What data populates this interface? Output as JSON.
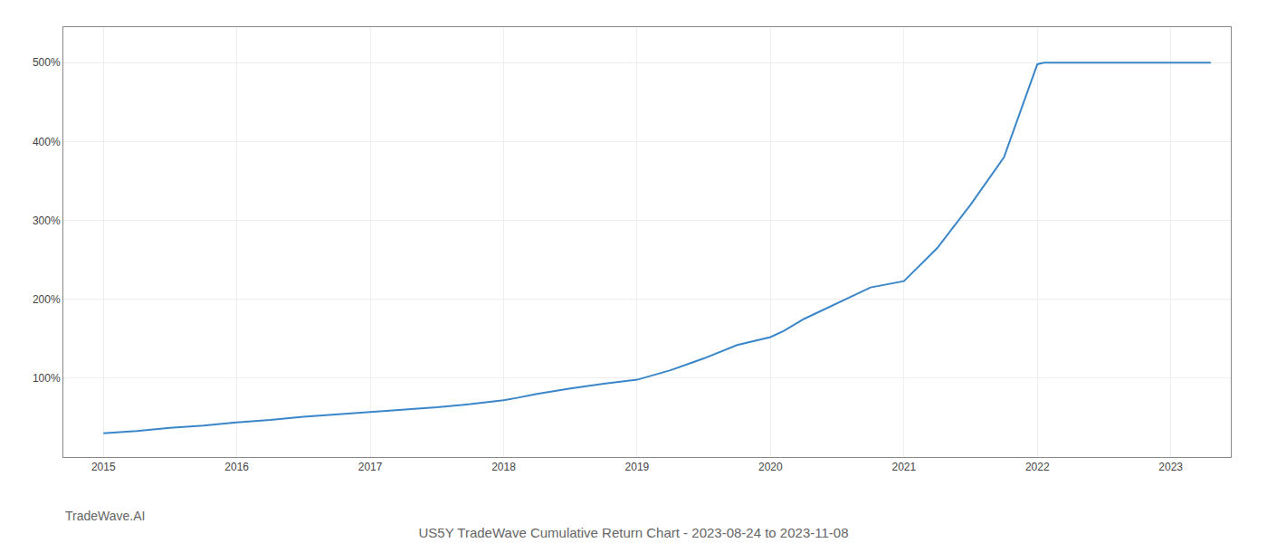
{
  "chart_data": {
    "type": "line",
    "title": "US5Y TradeWave Cumulative Return Chart - 2023-08-24 to 2023-11-08",
    "annotations": [
      "TradeWave.AI"
    ],
    "x": [
      2015.0,
      2015.25,
      2015.5,
      2015.75,
      2016.0,
      2016.25,
      2016.5,
      2016.75,
      2017.0,
      2017.25,
      2017.5,
      2017.75,
      2018.0,
      2018.1,
      2018.25,
      2018.5,
      2018.75,
      2019.0,
      2019.25,
      2019.5,
      2019.75,
      2020.0,
      2020.1,
      2020.25,
      2020.5,
      2020.75,
      2021.0,
      2021.25,
      2021.5,
      2021.75,
      2022.0,
      2022.05,
      2022.1,
      2022.25,
      2022.5,
      2022.75,
      2023.0,
      2023.1,
      2023.3
    ],
    "values": [
      30,
      33,
      37,
      40,
      44,
      47,
      51,
      54,
      57,
      60,
      63,
      67,
      72,
      75,
      80,
      87,
      93,
      98,
      110,
      125,
      142,
      152,
      160,
      175,
      195,
      215,
      223,
      265,
      320,
      380,
      498,
      500,
      500,
      500,
      500,
      500,
      500,
      500,
      500
    ],
    "color": "#3a86c8",
    "xlim": [
      2014.7,
      2023.45
    ],
    "xticks": [
      2015,
      2016,
      2017,
      2018,
      2019,
      2020,
      2021,
      2022,
      2023
    ],
    "ylim": [
      0,
      545
    ],
    "yticks": [
      {
        "value": 100,
        "label": "100%"
      },
      {
        "value": 200,
        "label": "200%"
      },
      {
        "value": 300,
        "label": "300%"
      },
      {
        "value": 400,
        "label": "400%"
      },
      {
        "value": 500,
        "label": "500%"
      }
    ],
    "grid": true
  }
}
